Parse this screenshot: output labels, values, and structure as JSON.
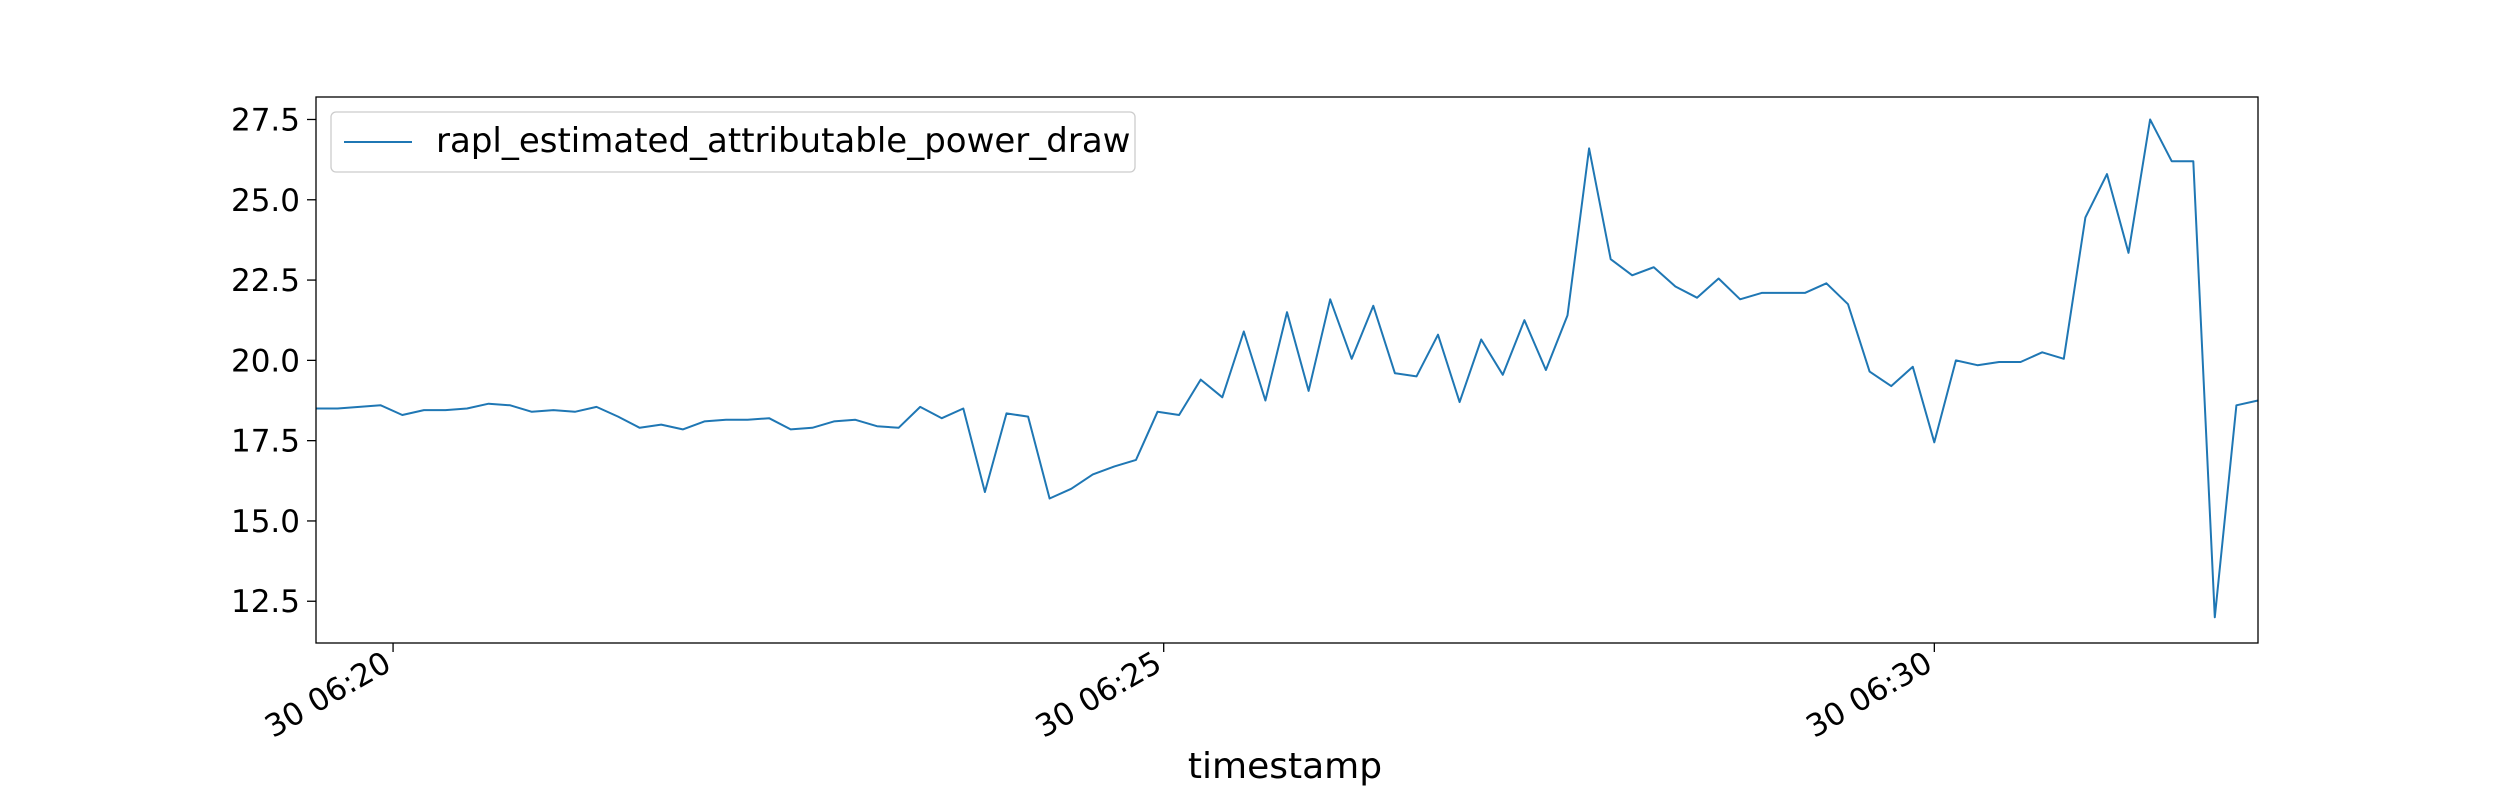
{
  "chart_data": {
    "type": "line",
    "title": "",
    "xlabel": "timestamp",
    "ylabel": "",
    "xticks": [
      {
        "minute": 20,
        "label": "30 06:20"
      },
      {
        "minute": 25,
        "label": "30 06:25"
      },
      {
        "minute": 30,
        "label": "30 06:30"
      }
    ],
    "yticks": [
      12.5,
      15.0,
      17.5,
      20.0,
      22.5,
      25.0,
      27.5
    ],
    "xlim": [
      19.5,
      32.1
    ],
    "ylim": [
      11.2,
      28.2
    ],
    "grid": false,
    "legend": "top-left",
    "series": [
      {
        "name": "rapl_estimated_attributable_power_draw",
        "color": "#1f77b4",
        "x": [
          19.5,
          19.64,
          19.78,
          19.92,
          20.06,
          20.2,
          20.34,
          20.48,
          20.62,
          20.76,
          20.9,
          21.04,
          21.18,
          21.32,
          21.46,
          21.6,
          21.74,
          21.88,
          22.02,
          22.16,
          22.3,
          22.44,
          22.58,
          22.72,
          22.86,
          23.0,
          23.14,
          23.28,
          23.42,
          23.56,
          23.7,
          23.84,
          23.98,
          24.12,
          24.26,
          24.4,
          24.54,
          24.68,
          24.82,
          24.96,
          25.1,
          25.24,
          25.38,
          25.52,
          25.66,
          25.8,
          25.94,
          26.08,
          26.22,
          26.36,
          26.5,
          26.64,
          26.78,
          26.92,
          27.06,
          27.2,
          27.34,
          27.48,
          27.62,
          27.76,
          27.9,
          28.04,
          28.18,
          28.32,
          28.46,
          28.6,
          28.74,
          28.88,
          29.02,
          29.16,
          29.3,
          29.44,
          29.58,
          29.72,
          29.86,
          30.0,
          30.14,
          30.28,
          30.42,
          30.56,
          30.7,
          30.84,
          30.98,
          31.12,
          31.26,
          31.4,
          31.54,
          31.68,
          31.82,
          31.96,
          32.1
        ],
        "y": [
          18.5,
          18.5,
          18.55,
          18.6,
          18.3,
          18.45,
          18.45,
          18.5,
          18.65,
          18.6,
          18.4,
          18.45,
          18.4,
          18.55,
          18.25,
          17.9,
          18.0,
          17.85,
          18.1,
          18.15,
          18.15,
          18.2,
          17.85,
          17.9,
          18.1,
          18.15,
          17.95,
          17.9,
          18.55,
          18.2,
          18.5,
          15.9,
          18.35,
          18.25,
          15.7,
          16.0,
          16.45,
          16.7,
          16.9,
          18.4,
          18.3,
          19.4,
          18.85,
          20.9,
          18.75,
          21.5,
          19.05,
          21.9,
          20.05,
          21.7,
          19.6,
          19.5,
          20.8,
          18.7,
          20.65,
          19.55,
          21.25,
          19.7,
          21.4,
          26.6,
          23.15,
          22.65,
          22.9,
          22.3,
          21.95,
          22.55,
          21.9,
          22.1,
          22.1,
          22.1,
          22.4,
          21.75,
          19.65,
          19.2,
          19.8,
          17.45,
          20.0,
          19.85,
          19.95,
          19.95,
          20.25,
          20.05,
          24.45,
          25.8,
          23.35,
          27.5,
          26.2,
          26.2,
          12.0,
          18.6,
          18.75
        ]
      }
    ]
  }
}
